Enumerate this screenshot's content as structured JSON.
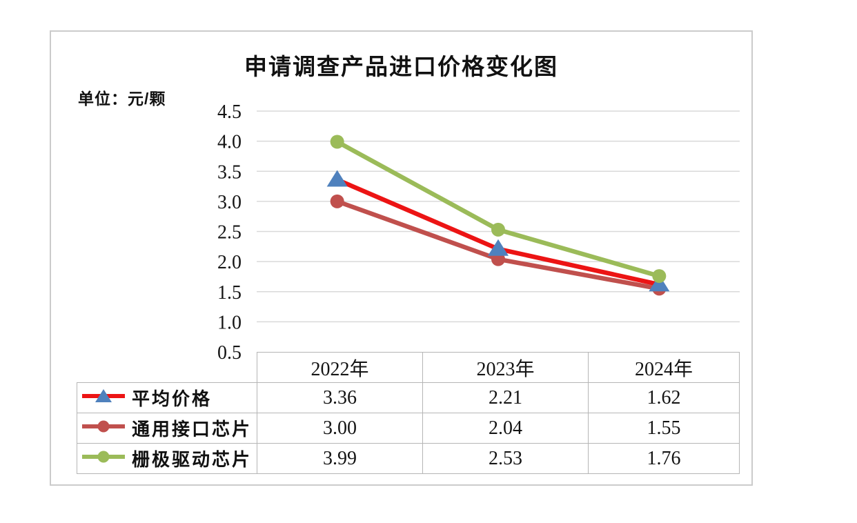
{
  "chart_data": {
    "type": "line",
    "title": "申请调查产品进口价格变化图",
    "unit_label": "单位：元/颗",
    "categories": [
      "2022年",
      "2023年",
      "2024年"
    ],
    "series": [
      {
        "name": "平均价格",
        "values": [
          3.36,
          2.21,
          1.62
        ],
        "color": "#ec1414",
        "marker": "triangle",
        "marker_color": "#4f81bd"
      },
      {
        "name": "通用接口芯片",
        "values": [
          3.0,
          2.04,
          1.55
        ],
        "color": "#c0504d",
        "marker": "circle",
        "marker_color": "#c0504d"
      },
      {
        "name": "栅极驱动芯片",
        "values": [
          3.99,
          2.53,
          1.76
        ],
        "color": "#9bbb59",
        "marker": "circle",
        "marker_color": "#9bbb59"
      }
    ],
    "ylim": [
      0.5,
      4.5
    ],
    "yticks": [
      "4.5",
      "4.0",
      "3.5",
      "3.0",
      "2.5",
      "2.0",
      "1.5",
      "1.0",
      "0.5"
    ],
    "grid": true,
    "grid_color": "#d9d9d9",
    "legend_position": "table-left"
  },
  "table": {
    "columns": [
      "2022年",
      "2023年",
      "2024年"
    ],
    "rows": [
      {
        "label": "平均价格",
        "values": [
          "3.36",
          "2.21",
          "1.62"
        ]
      },
      {
        "label": "通用接口芯片",
        "values": [
          "3.00",
          "2.04",
          "1.55"
        ]
      },
      {
        "label": "栅极驱动芯片",
        "values": [
          "3.99",
          "2.53",
          "1.76"
        ]
      }
    ]
  }
}
